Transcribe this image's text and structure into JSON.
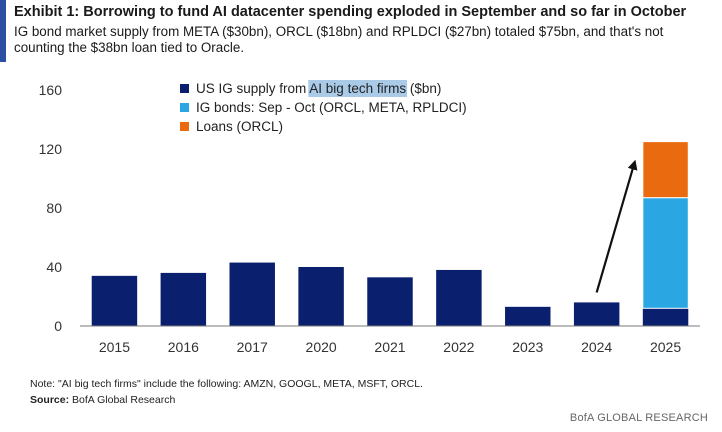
{
  "header": {
    "title": "Exhibit 1:  Borrowing to fund AI datacenter spending exploded in September and so far in October",
    "subtitle": "IG bond market supply from META ($30bn), ORCL ($18bn) and RPLDCI ($27bn) totaled $75bn, and that's not counting the $38bn loan tied to Oracle."
  },
  "footer": {
    "note": "Note: \"AI big tech firms\" include the following: AMZN, GOOGL, META, MSFT, ORCL.",
    "source_label": "Source:",
    "source_text": " BofA Global Research",
    "brand": "BofA GLOBAL RESEARCH"
  },
  "chart_data": {
    "type": "bar",
    "stacked": true,
    "categories": [
      "2015",
      "2016",
      "2017",
      "2020",
      "2021",
      "2022",
      "2023",
      "2024",
      "2025"
    ],
    "series": [
      {
        "name": "US IG supply from AI big tech firms ($bn)",
        "color": "#0a1f6e",
        "values": [
          34,
          36,
          43,
          40,
          33,
          38,
          13,
          16,
          12
        ]
      },
      {
        "name": "IG bonds: Sep - Oct (ORCL, META, RPLDCI)",
        "color": "#2aa7e3",
        "values": [
          0,
          0,
          0,
          0,
          0,
          0,
          0,
          0,
          75
        ]
      },
      {
        "name": "Loans (ORCL)",
        "color": "#ea6a10",
        "values": [
          0,
          0,
          0,
          0,
          0,
          0,
          0,
          0,
          38
        ]
      }
    ],
    "yticks": [
      0,
      40,
      80,
      120,
      160
    ],
    "ylim": [
      0,
      160
    ],
    "grid": false,
    "legend_position": "top-center",
    "legend_highlight": "AI big tech firms",
    "annotation": {
      "type": "arrow",
      "from_category": "2024",
      "to_category": "2025"
    }
  }
}
